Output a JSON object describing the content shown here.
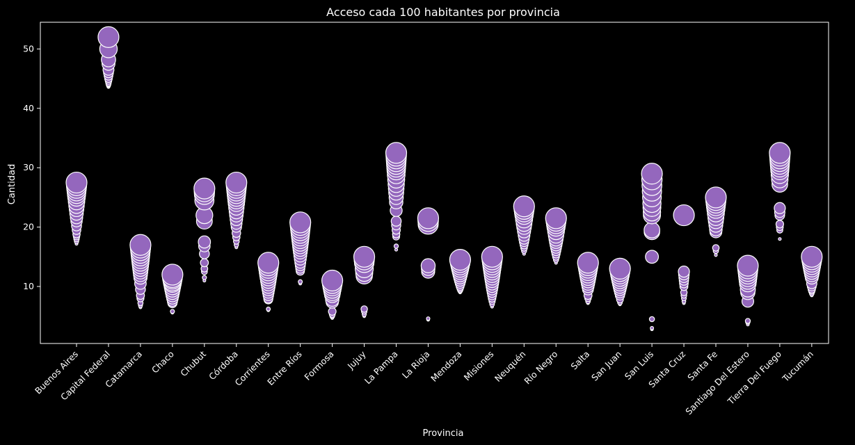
{
  "chart_data": {
    "type": "scatter",
    "title": "Acceso cada 100 habitantes por provincia",
    "xlabel": "Provincia",
    "ylabel": "Cantidad",
    "ylim": [
      0.4,
      54.5
    ],
    "yticks": [
      10,
      20,
      30,
      40,
      50
    ],
    "grid": false,
    "legend": "none",
    "colors": {
      "background": "#000000",
      "marker": "#9467bd",
      "edge": "#ffffff",
      "text": "#ffffff"
    },
    "size_note": "marker size grows with value (larger bubbles for more recent/higher readings)",
    "categories": [
      "Buenos Aires",
      "Capital Federal",
      "Catamarca",
      "Chaco",
      "Chubut",
      "Córdoba",
      "Corrientes",
      "Entre Ríos",
      "Formosa",
      "Jujuy",
      "La Pampa",
      "La Rioja",
      "Mendoza",
      "Misiones",
      "Neuquén",
      "Río Negro",
      "Salta",
      "San Juan",
      "San Luis",
      "Santa Cruz",
      "Santa Fe",
      "Santiago Del Estero",
      "Tierra Del Fuego",
      "Tucumán"
    ],
    "series": [
      {
        "category": "Buenos Aires",
        "values": [
          27.5,
          27.0,
          26.5,
          26.0,
          25.5,
          25.0,
          24.3,
          23.6,
          23.0,
          22.3,
          21.6,
          21.0,
          20.2,
          19.5,
          18.8,
          18.4,
          18.0,
          17.6,
          17.2
        ]
      },
      {
        "category": "Capital Federal",
        "values": [
          52.0,
          50.0,
          48.2,
          47.5,
          46.5,
          46.0,
          45.5,
          45.0,
          44.6,
          44.2,
          44.0,
          43.8,
          43.6
        ]
      },
      {
        "category": "Catamarca",
        "values": [
          17.0,
          16.5,
          16.0,
          15.5,
          15.0,
          14.5,
          14.0,
          13.5,
          13.0,
          12.5,
          12.0,
          11.5,
          10.5,
          9.5,
          8.5,
          8.0,
          7.2,
          6.8,
          6.5
        ]
      },
      {
        "category": "Chaco",
        "values": [
          12.0,
          11.5,
          11.2,
          10.8,
          10.5,
          10.0,
          9.5,
          9.0,
          8.5,
          8.0,
          7.5,
          7.2,
          5.8,
          5.6
        ]
      },
      {
        "category": "Chubut",
        "values": [
          26.5,
          26.0,
          25.5,
          24.5,
          22.0,
          21.0,
          17.5,
          16.8,
          15.5,
          14.0,
          13.0,
          12.5,
          11.5,
          11.0
        ]
      },
      {
        "category": "Córdoba",
        "values": [
          27.5,
          27.0,
          26.5,
          26.0,
          25.5,
          25.0,
          24.5,
          24.0,
          23.3,
          22.6,
          22.0,
          21.3,
          20.6,
          20.0,
          19.0,
          18.3,
          17.6,
          17.0,
          16.6
        ]
      },
      {
        "category": "Corrientes",
        "values": [
          14.0,
          13.5,
          13.0,
          12.5,
          12.0,
          11.5,
          11.0,
          10.5,
          10.0,
          9.5,
          9.0,
          8.5,
          8.0,
          7.8,
          6.2,
          6.0
        ]
      },
      {
        "category": "Entre Ríos",
        "values": [
          20.8,
          20.3,
          19.8,
          19.3,
          18.8,
          18.3,
          17.8,
          17.3,
          16.8,
          16.3,
          15.8,
          15.2,
          14.6,
          14.0,
          13.5,
          13.0,
          12.6,
          10.8,
          10.5
        ]
      },
      {
        "category": "Formosa",
        "values": [
          11.0,
          10.5,
          10.0,
          9.5,
          9.0,
          8.6,
          7.8,
          7.4,
          5.8,
          5.3,
          5.0,
          4.7
        ]
      },
      {
        "category": "Jujuy",
        "values": [
          15.0,
          14.5,
          14.0,
          13.0,
          12.3,
          11.8,
          6.2,
          5.8,
          5.3,
          5.0
        ]
      },
      {
        "category": "La Pampa",
        "values": [
          32.5,
          32.0,
          31.5,
          31.0,
          30.5,
          30.0,
          29.5,
          28.8,
          28.0,
          27.2,
          26.5,
          25.8,
          25.0,
          24.2,
          22.8,
          21.0,
          20.3,
          19.5,
          18.8,
          18.4,
          16.8,
          16.2
        ]
      },
      {
        "category": "La Rioja",
        "values": [
          21.5,
          21.0,
          20.5,
          13.5,
          13.0,
          12.5,
          4.6,
          4.4
        ]
      },
      {
        "category": "Mendoza",
        "values": [
          14.5,
          14.0,
          13.5,
          13.0,
          12.5,
          12.0,
          11.5,
          11.0,
          10.5,
          10.0,
          9.6,
          9.3,
          9.0
        ]
      },
      {
        "category": "Misiones",
        "values": [
          15.0,
          14.5,
          14.0,
          13.5,
          13.0,
          12.5,
          12.0,
          11.5,
          11.0,
          10.5,
          10.0,
          9.5,
          9.0,
          8.5,
          8.0,
          7.5,
          7.0,
          6.6
        ]
      },
      {
        "category": "Neuquén",
        "values": [
          23.5,
          23.0,
          22.5,
          22.0,
          21.3,
          20.6,
          20.0,
          19.3,
          18.6,
          18.0,
          17.5,
          17.0,
          16.5,
          16.0,
          15.5
        ]
      },
      {
        "category": "Río Negro",
        "values": [
          21.5,
          21.0,
          20.5,
          20.0,
          19.3,
          18.6,
          18.0,
          17.5,
          17.0,
          16.5,
          16.0,
          15.5,
          15.0,
          14.5,
          14.0
        ]
      },
      {
        "category": "Salta",
        "values": [
          14.0,
          13.5,
          13.0,
          12.5,
          12.0,
          11.5,
          11.0,
          10.5,
          10.0,
          9.5,
          8.5,
          8.0,
          7.5,
          7.2
        ]
      },
      {
        "category": "San Juan",
        "values": [
          13.0,
          12.5,
          12.0,
          11.5,
          11.0,
          10.5,
          10.0,
          9.5,
          9.0,
          8.5,
          7.8,
          7.3,
          7.0
        ]
      },
      {
        "category": "San Luis",
        "values": [
          29.0,
          28.0,
          27.0,
          26.0,
          25.0,
          24.0,
          23.3,
          22.5,
          22.0,
          19.5,
          19.2,
          15.0,
          4.5,
          3.0,
          2.8
        ]
      },
      {
        "category": "Santa Cruz",
        "values": [
          22.0,
          12.5,
          12.0,
          11.5,
          11.0,
          10.5,
          10.0,
          9.0,
          8.5,
          8.0,
          7.5,
          7.2
        ]
      },
      {
        "category": "Santa Fe",
        "values": [
          25.0,
          24.5,
          24.0,
          23.5,
          23.0,
          22.3,
          21.6,
          21.0,
          20.3,
          19.6,
          19.2,
          16.5,
          16.0,
          15.3
        ]
      },
      {
        "category": "Santiago Del Estero",
        "values": [
          13.5,
          13.0,
          12.5,
          12.0,
          11.5,
          11.0,
          10.5,
          9.5,
          9.0,
          7.5,
          4.2,
          4.0,
          3.6
        ]
      },
      {
        "category": "Tierra Del Fuego",
        "values": [
          32.5,
          32.0,
          31.5,
          31.0,
          30.5,
          30.0,
          29.5,
          28.8,
          28.0,
          27.2,
          23.2,
          22.5,
          22.0,
          20.5,
          20.0,
          19.5,
          18.0
        ]
      },
      {
        "category": "Tucumán",
        "values": [
          15.0,
          14.5,
          14.0,
          13.5,
          13.0,
          12.5,
          12.0,
          11.5,
          10.5,
          10.0,
          9.5,
          9.2,
          8.8,
          8.5
        ]
      }
    ]
  }
}
